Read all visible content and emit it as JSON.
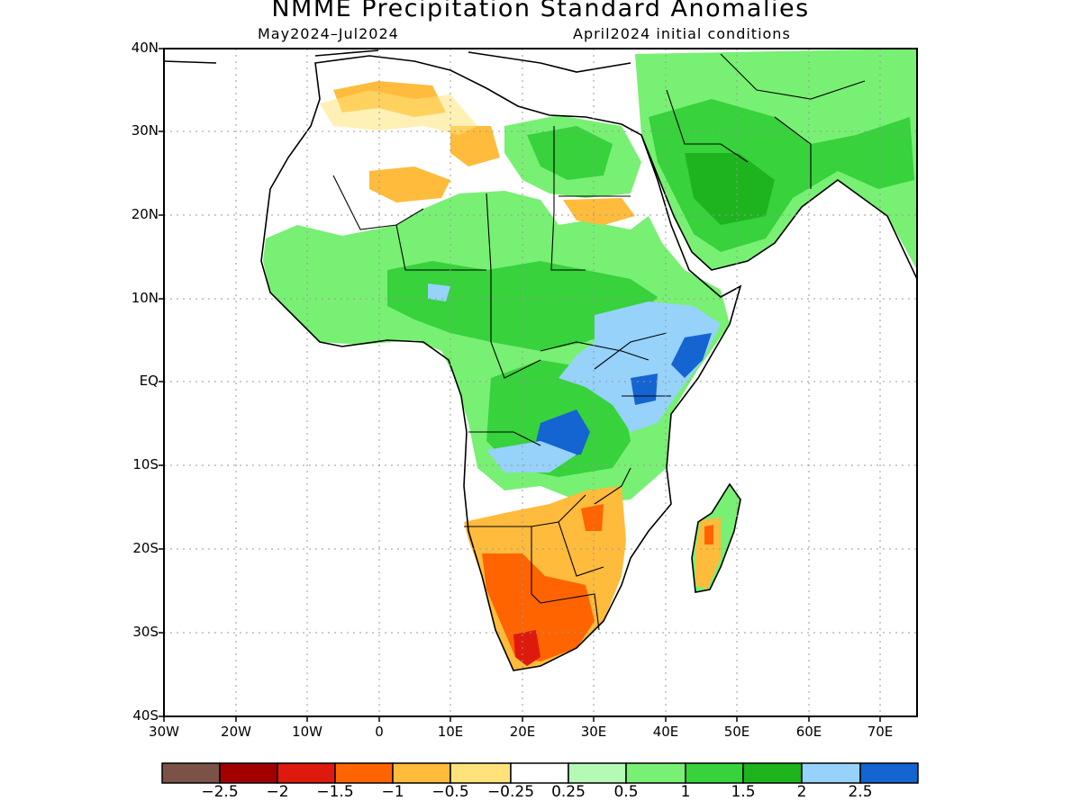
{
  "header": {
    "title": "NMME Precipitation Standard Anomalies",
    "period": "May2024–Jul2024",
    "init": "April2024 initial conditions"
  },
  "axes": {
    "lat_ticks": [
      "40N",
      "30N",
      "20N",
      "10N",
      "EQ",
      "10S",
      "20S",
      "30S",
      "40S"
    ],
    "lon_ticks": [
      "30W",
      "20W",
      "10W",
      "0",
      "10E",
      "20E",
      "30E",
      "40E",
      "50E",
      "60E",
      "70E"
    ]
  },
  "colorbar": {
    "colors": [
      "#7b5246",
      "#a30000",
      "#dd1a0d",
      "#ff6400",
      "#ffbb3c",
      "#ffe37a",
      "#ffffff",
      "#b4fab4",
      "#78f073",
      "#37d23c",
      "#1eb41e",
      "#96d2fa",
      "#1464d2"
    ],
    "labels": [
      "−2.5",
      "−2",
      "−1.5",
      "−1",
      "−0.5",
      "−0.25",
      "0.25",
      "0.5",
      "1",
      "1.5",
      "2",
      "2.5"
    ]
  },
  "map_regions": [
    {
      "name": "sahara-north-dry",
      "category": "-0.5"
    },
    {
      "name": "sahel-wet",
      "category": "1"
    },
    {
      "name": "east-africa-very-wet",
      "category": "2.5"
    },
    {
      "name": "arabia-wet",
      "category": "1.5"
    },
    {
      "name": "southern-africa-dry",
      "category": "-1.5"
    },
    {
      "name": "madagascar-dry",
      "category": "-1"
    }
  ]
}
